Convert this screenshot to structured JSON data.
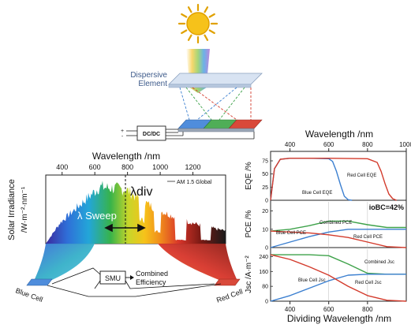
{
  "colors": {
    "sun": "#f6c21a",
    "sun_stroke": "#e0a100",
    "blue_cell": "#3b7fd0",
    "green_cell": "#3ea24a",
    "red_cell": "#d33b2c",
    "element": "#c9d7ea",
    "eqe_blue": "#3b7fd0",
    "eqe_red": "#d33b2c",
    "combined": "#3ea24a"
  },
  "top_diagram": {
    "element_label_line1": "Dispersive",
    "element_label_line2": "Element",
    "converter_label": "DC/DC",
    "plus": "+",
    "minus": "-"
  },
  "spectrum": {
    "title": "Wavelength /nm",
    "ylabel_line1": "Solar Irradiance",
    "ylabel_line2": "/W·m⁻²·nm⁻¹",
    "ticks": [
      "400",
      "600",
      "800",
      "1000",
      "1200"
    ],
    "legend": "AM 1.5 Global",
    "sweep": "λ Sweep",
    "div_label": "λdiv",
    "blue_cell": "Blue Cell",
    "red_cell": "Red Cell",
    "smu": "SMU",
    "combined_line1": "Combined",
    "combined_line2": "Efficiency"
  },
  "right_panels": {
    "top_axis_title": "Wavelength /nm",
    "top_ticks": [
      "400",
      "600",
      "800",
      "1000"
    ],
    "bottom_axis_title": "Dividing Wavelength /nm",
    "bottom_ticks": [
      "400",
      "600",
      "800"
    ],
    "eqe": {
      "ylabel": "EQE /%",
      "yticks": [
        "0",
        "25",
        "50",
        "75"
      ],
      "blue_label": "Blue Cell EQE",
      "red_label": "Red Cell EQE"
    },
    "pce": {
      "ylabel": "PCE /%",
      "yticks": [
        "0",
        "10",
        "20"
      ],
      "badge": "ioBC=42%",
      "combined_label": "Combined PCE",
      "blue_label": "Blue Cell PCE",
      "red_label": "Red Cell PCE"
    },
    "jsc": {
      "ylabel": "Jsc /A·m⁻²",
      "yticks": [
        "0",
        "80",
        "160",
        "240"
      ],
      "combined_label": "Combined Jsc",
      "blue_label": "Blue Cell Jsc",
      "red_label": "Red Cell Jsc"
    }
  },
  "chart_data": [
    {
      "type": "line",
      "title": "",
      "xlabel": "Wavelength /nm",
      "ylabel": "EQE /%",
      "xlim": [
        300,
        1000
      ],
      "ylim": [
        0,
        90
      ],
      "series": [
        {
          "name": "Blue Cell EQE",
          "x": [
            300,
            320,
            350,
            400,
            500,
            600,
            620,
            640,
            660,
            680,
            700,
            720
          ],
          "y": [
            0,
            60,
            78,
            80,
            80,
            79,
            74,
            55,
            30,
            8,
            1,
            0
          ]
        },
        {
          "name": "Red Cell EQE",
          "x": [
            300,
            320,
            350,
            400,
            600,
            800,
            850,
            870,
            890,
            910,
            930,
            950
          ],
          "y": [
            0,
            60,
            78,
            80,
            80,
            79,
            72,
            55,
            32,
            12,
            3,
            0
          ]
        }
      ]
    },
    {
      "type": "line",
      "title": "",
      "xlabel": "Dividing Wavelength /nm",
      "ylabel": "PCE /%",
      "xlim": [
        300,
        1000
      ],
      "ylim": [
        0,
        25
      ],
      "series": [
        {
          "name": "Combined PCE",
          "x": [
            300,
            400,
            500,
            600,
            700,
            800,
            900,
            1000
          ],
          "y": [
            9,
            10,
            12,
            14.5,
            14.5,
            12.5,
            11,
            11
          ]
        },
        {
          "name": "Blue Cell PCE",
          "x": [
            300,
            400,
            500,
            600,
            700,
            800,
            1000
          ],
          "y": [
            0,
            3,
            6,
            8.5,
            10,
            10,
            10
          ]
        },
        {
          "name": "Red Cell PCE",
          "x": [
            300,
            400,
            500,
            600,
            700,
            800,
            900,
            1000
          ],
          "y": [
            9,
            8.5,
            8,
            7,
            5.5,
            3,
            0.5,
            0
          ]
        }
      ]
    },
    {
      "type": "line",
      "title": "",
      "xlabel": "Dividing Wavelength /nm",
      "ylabel": "Jsc /A·m⁻²",
      "xlim": [
        300,
        1000
      ],
      "ylim": [
        0,
        280
      ],
      "series": [
        {
          "name": "Combined Jsc",
          "x": [
            300,
            400,
            500,
            600,
            700,
            800,
            900,
            1000
          ],
          "y": [
            250,
            250,
            250,
            245,
            200,
            150,
            145,
            145
          ]
        },
        {
          "name": "Blue Cell Jsc",
          "x": [
            300,
            400,
            500,
            600,
            700,
            800,
            1000
          ],
          "y": [
            0,
            30,
            70,
            110,
            140,
            145,
            145
          ]
        },
        {
          "name": "Red Cell Jsc",
          "x": [
            300,
            400,
            500,
            600,
            700,
            800,
            900,
            1000
          ],
          "y": [
            250,
            225,
            185,
            140,
            80,
            30,
            5,
            0
          ]
        }
      ]
    }
  ]
}
